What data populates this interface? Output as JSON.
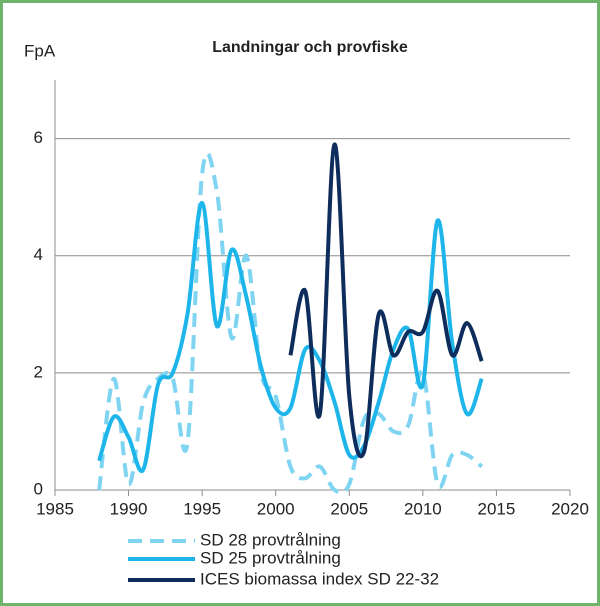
{
  "chart_data": {
    "type": "line",
    "title": "Landningar och provfiske",
    "y_label": "FpA",
    "xlim": [
      1985,
      2020
    ],
    "xticks": [
      1985,
      1990,
      1995,
      2000,
      2005,
      2010,
      2015,
      2020
    ],
    "ylim": [
      0,
      7
    ],
    "yticks": [
      0,
      2,
      4,
      6
    ],
    "grid": true,
    "series": [
      {
        "name": "SD 28 provtrålning",
        "color": "#7fd4f2",
        "dashed": true,
        "x": [
          1988,
          1989,
          1990,
          1991,
          1992,
          1993,
          1994,
          1995,
          1996,
          1997,
          1998,
          1999,
          2000,
          2001,
          2002,
          2003,
          2004,
          2005,
          2006,
          2007,
          2008,
          2009,
          2010,
          2011,
          2012,
          2013,
          2014
        ],
        "values": [
          0,
          1.9,
          0.1,
          1.5,
          1.9,
          1.9,
          0.8,
          5.4,
          5.1,
          2.6,
          4.0,
          2.0,
          1.6,
          0.4,
          0.2,
          0.4,
          0.0,
          0.1,
          1.2,
          1.3,
          1.0,
          1.1,
          2.0,
          0.1,
          0.6,
          0.6,
          0.4
        ]
      },
      {
        "name": "SD 25 provtrålning",
        "color": "#1eb6ea",
        "dashed": false,
        "x": [
          1988,
          1989,
          1990,
          1991,
          1992,
          1993,
          1994,
          1995,
          1996,
          1997,
          1998,
          1999,
          2000,
          2001,
          2002,
          2003,
          2004,
          2005,
          2006,
          2007,
          2008,
          2009,
          2010,
          2011,
          2012,
          2013,
          2014
        ],
        "values": [
          0.5,
          1.25,
          0.9,
          0.35,
          1.8,
          2.0,
          3.0,
          4.9,
          2.8,
          4.1,
          3.3,
          2.1,
          1.4,
          1.4,
          2.4,
          2.2,
          1.5,
          0.6,
          0.75,
          1.5,
          2.4,
          2.75,
          1.8,
          4.6,
          2.5,
          1.3,
          1.9
        ]
      },
      {
        "name": "ICES biomassa index SD 22-32",
        "color": "#0e2d5c",
        "dashed": false,
        "x": [
          2001,
          2002,
          2003,
          2004,
          2005,
          2006,
          2007,
          2008,
          2009,
          2010,
          2011,
          2012,
          2013,
          2014
        ],
        "values": [
          2.3,
          3.4,
          1.3,
          5.9,
          1.6,
          0.65,
          3.0,
          2.3,
          2.7,
          2.7,
          3.4,
          2.3,
          2.85,
          2.2
        ]
      }
    ]
  }
}
